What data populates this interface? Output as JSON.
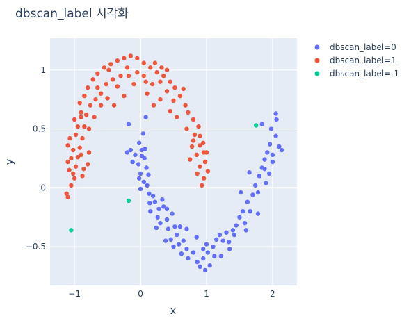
{
  "chart_data": {
    "type": "scatter",
    "title": "dbscan_label 시각화",
    "xlabel": "x",
    "ylabel": "y",
    "xlim": [
      -1.37,
      2.37
    ],
    "ylim": [
      -0.83,
      1.27
    ],
    "xticks": [
      -1,
      0,
      1,
      2
    ],
    "yticks": [
      -0.5,
      0,
      0.5,
      1
    ],
    "xtick_labels": [
      "−1",
      "0",
      "1",
      "2"
    ],
    "ytick_labels": [
      "−0.5",
      "0",
      "0.5",
      "1"
    ],
    "grid": true,
    "legend_position": "top-right",
    "background": "#e5ecf6",
    "series": [
      {
        "name": "dbscan_label=0",
        "color": "#636efa",
        "points": [
          [
            -0.18,
            0.54
          ],
          [
            -0.2,
            0.3
          ],
          [
            -0.12,
            0.22
          ],
          [
            -0.08,
            0.28
          ],
          [
            0.02,
            0.27
          ],
          [
            0.06,
            0.25
          ],
          [
            -0.03,
            0.2
          ],
          [
            0.09,
            0.17
          ],
          [
            0.12,
            0.11
          ],
          [
            0.0,
            0.12
          ],
          [
            0.05,
            0.05
          ],
          [
            -0.02,
            0.08
          ],
          [
            0.1,
            0.02
          ],
          [
            0.0,
            -0.01
          ],
          [
            0.13,
            -0.05
          ],
          [
            0.19,
            -0.07
          ],
          [
            0.14,
            -0.13
          ],
          [
            0.22,
            -0.12
          ],
          [
            0.28,
            -0.18
          ],
          [
            0.35,
            -0.16
          ],
          [
            0.26,
            -0.25
          ],
          [
            0.3,
            -0.3
          ],
          [
            0.4,
            -0.27
          ],
          [
            0.48,
            -0.22
          ],
          [
            0.42,
            -0.35
          ],
          [
            0.52,
            -0.33
          ],
          [
            0.46,
            -0.44
          ],
          [
            0.55,
            -0.4
          ],
          [
            0.58,
            -0.48
          ],
          [
            0.65,
            -0.45
          ],
          [
            0.62,
            -0.56
          ],
          [
            0.7,
            -0.52
          ],
          [
            0.72,
            -0.6
          ],
          [
            0.8,
            -0.55
          ],
          [
            0.86,
            -0.63
          ],
          [
            0.9,
            -0.67
          ],
          [
            0.95,
            -0.6
          ],
          [
            0.98,
            -0.7
          ],
          [
            1.05,
            -0.66
          ],
          [
            1.02,
            -0.55
          ],
          [
            1.1,
            -0.5
          ],
          [
            1.15,
            -0.44
          ],
          [
            1.2,
            -0.4
          ],
          [
            1.25,
            -0.45
          ],
          [
            1.3,
            -0.38
          ],
          [
            1.34,
            -0.46
          ],
          [
            1.4,
            -0.36
          ],
          [
            1.45,
            -0.32
          ],
          [
            1.5,
            -0.25
          ],
          [
            1.55,
            -0.2
          ],
          [
            1.58,
            -0.3
          ],
          [
            1.62,
            -0.12
          ],
          [
            1.66,
            -0.2
          ],
          [
            1.7,
            -0.06
          ],
          [
            1.74,
            0.02
          ],
          [
            1.78,
            -0.04
          ],
          [
            1.8,
            0.1
          ],
          [
            1.84,
            0.17
          ],
          [
            1.88,
            0.24
          ],
          [
            1.92,
            0.3
          ],
          [
            1.96,
            0.37
          ],
          [
            2.0,
            0.28
          ],
          [
            2.05,
            0.44
          ],
          [
            2.1,
            0.35
          ],
          [
            2.14,
            0.32
          ],
          [
            2.06,
            0.58
          ],
          [
            2.05,
            0.63
          ],
          [
            1.84,
            0.54
          ],
          [
            1.9,
            0.04
          ],
          [
            1.95,
            0.12
          ],
          [
            1.65,
            0.13
          ],
          [
            1.52,
            -0.04
          ],
          [
            1.6,
            -0.36
          ],
          [
            1.35,
            -0.52
          ],
          [
            1.22,
            -0.58
          ],
          [
            1.0,
            -0.48
          ],
          [
            0.85,
            -0.42
          ],
          [
            0.6,
            -0.33
          ],
          [
            0.5,
            -0.5
          ],
          [
            0.38,
            -0.45
          ],
          [
            0.24,
            -0.34
          ],
          [
            0.15,
            -0.2
          ],
          [
            0.33,
            -0.1
          ],
          [
            0.4,
            -0.18
          ],
          [
            0.7,
            -0.35
          ],
          [
            0.95,
            -0.52
          ],
          [
            1.12,
            -0.58
          ],
          [
            1.42,
            -0.4
          ],
          [
            1.78,
            -0.22
          ],
          [
            1.88,
            0.16
          ],
          [
            2.0,
            0.22
          ],
          [
            1.98,
            0.5
          ],
          [
            0.04,
            0.46
          ],
          [
            -0.02,
            0.38
          ],
          [
            0.08,
            0.6
          ],
          [
            -0.15,
            0.32
          ],
          [
            0.02,
            0.32
          ],
          [
            0.07,
            0.33
          ]
        ]
      },
      {
        "name": "dbscan_label=1",
        "color": "#ef553b",
        "points": [
          [
            -1.1,
            -0.08
          ],
          [
            -1.12,
            -0.05
          ],
          [
            -1.05,
            0.02
          ],
          [
            -1.0,
            0.08
          ],
          [
            -1.08,
            0.15
          ],
          [
            -1.1,
            0.22
          ],
          [
            -1.05,
            0.25
          ],
          [
            -1.02,
            0.32
          ],
          [
            -1.1,
            0.36
          ],
          [
            -1.07,
            0.42
          ],
          [
            -0.98,
            0.45
          ],
          [
            -0.95,
            0.52
          ],
          [
            -1.0,
            0.58
          ],
          [
            -0.9,
            0.64
          ],
          [
            -0.92,
            0.72
          ],
          [
            -0.85,
            0.78
          ],
          [
            -0.8,
            0.85
          ],
          [
            -0.72,
            0.92
          ],
          [
            -0.65,
            0.97
          ],
          [
            -0.55,
            1.02
          ],
          [
            -0.45,
            1.05
          ],
          [
            -0.35,
            1.08
          ],
          [
            -0.25,
            1.1
          ],
          [
            -0.15,
            1.12
          ],
          [
            -0.05,
            1.1
          ],
          [
            0.05,
            1.06
          ],
          [
            0.15,
            1.02
          ],
          [
            0.25,
            0.98
          ],
          [
            0.35,
            0.95
          ],
          [
            0.45,
            0.9
          ],
          [
            0.52,
            0.85
          ],
          [
            0.6,
            0.78
          ],
          [
            0.68,
            0.7
          ],
          [
            0.72,
            0.64
          ],
          [
            0.8,
            0.58
          ],
          [
            0.88,
            0.52
          ],
          [
            0.9,
            0.44
          ],
          [
            0.95,
            0.38
          ],
          [
            1.0,
            0.3
          ],
          [
            0.98,
            0.22
          ],
          [
            1.02,
            0.14
          ],
          [
            0.96,
            0.08
          ],
          [
            0.93,
            0.02
          ],
          [
            0.9,
            0.18
          ],
          [
            0.85,
            0.28
          ],
          [
            0.78,
            0.35
          ],
          [
            0.75,
            0.24
          ],
          [
            0.82,
            0.45
          ],
          [
            0.65,
            0.84
          ],
          [
            0.5,
            0.74
          ],
          [
            0.4,
            0.82
          ],
          [
            0.3,
            0.9
          ],
          [
            0.18,
            0.88
          ],
          [
            0.05,
            0.95
          ],
          [
            -0.05,
            0.98
          ],
          [
            -0.18,
            0.95
          ],
          [
            -0.3,
            0.95
          ],
          [
            -0.42,
            0.92
          ],
          [
            -0.52,
            0.88
          ],
          [
            -0.6,
            0.8
          ],
          [
            -0.68,
            0.75
          ],
          [
            -0.76,
            0.7
          ],
          [
            -0.82,
            0.62
          ],
          [
            -0.85,
            0.52
          ],
          [
            -0.88,
            0.42
          ],
          [
            -0.92,
            0.34
          ],
          [
            -0.95,
            0.26
          ],
          [
            -0.98,
            0.18
          ],
          [
            -1.02,
            0.12
          ],
          [
            -0.88,
            0.1
          ],
          [
            -0.8,
            0.2
          ],
          [
            -0.78,
            0.3
          ],
          [
            -0.7,
            0.6
          ],
          [
            -0.4,
            0.7
          ],
          [
            -0.25,
            0.78
          ],
          [
            0.1,
            0.8
          ],
          [
            0.3,
            0.75
          ],
          [
            0.45,
            0.65
          ],
          [
            0.55,
            0.6
          ],
          [
            0.7,
            0.5
          ],
          [
            -0.5,
            0.76
          ],
          [
            -0.6,
            0.7
          ],
          [
            -0.35,
            0.86
          ],
          [
            -0.2,
            1.02
          ],
          [
            0.22,
            1.06
          ],
          [
            0.4,
            1.0
          ],
          [
            -0.1,
            0.88
          ],
          [
            0.2,
            0.7
          ],
          [
            -0.78,
            0.5
          ],
          [
            -0.9,
            0.28
          ],
          [
            -0.86,
            0.16
          ],
          [
            0.96,
            0.3
          ],
          [
            0.9,
            0.36
          ],
          [
            0.86,
            0.12
          ],
          [
            0.8,
            0.4
          ],
          [
            -0.65,
            0.85
          ],
          [
            0.08,
            0.9
          ],
          [
            0.32,
            1.02
          ],
          [
            -0.48,
            1.0
          ],
          [
            -0.9,
            0.6
          ]
        ]
      },
      {
        "name": "dbscan_label=-1",
        "color": "#00cc96",
        "points": [
          [
            1.75,
            0.53
          ],
          [
            -0.18,
            -0.11
          ],
          [
            -1.05,
            -0.36
          ]
        ]
      }
    ]
  }
}
